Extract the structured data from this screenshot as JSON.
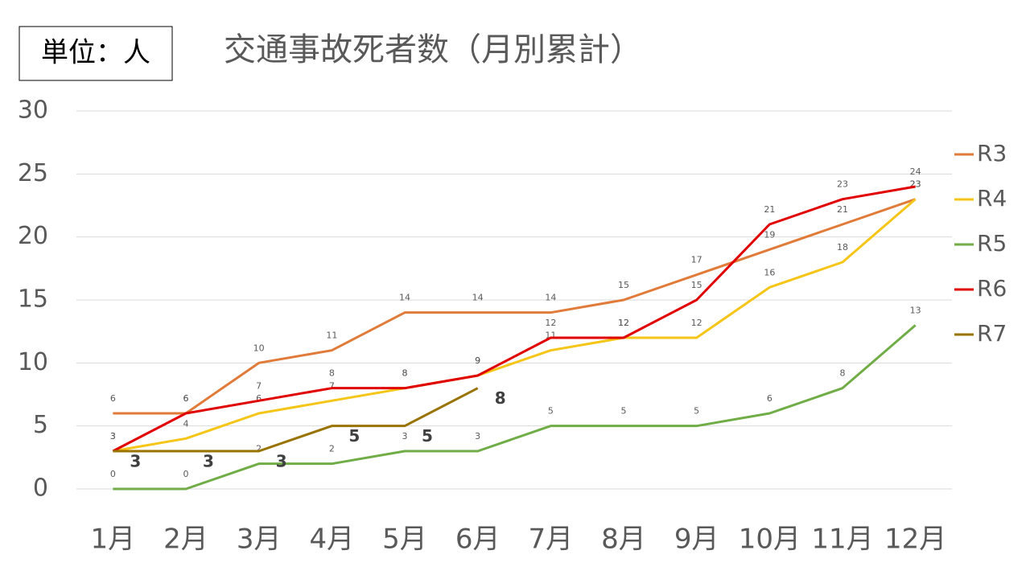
{
  "chart_data": {
    "type": "line",
    "title": "交通事故死者数（月別累計）",
    "unit_note": "単位：人",
    "categories": [
      "1月",
      "2月",
      "3月",
      "4月",
      "5月",
      "6月",
      "7月",
      "8月",
      "9月",
      "10月",
      "11月",
      "12月"
    ],
    "series": [
      {
        "name": "R3",
        "color": "#E07B39",
        "values": [
          6,
          6,
          10,
          11,
          14,
          14,
          14,
          15,
          17,
          19,
          21,
          23
        ]
      },
      {
        "name": "R4",
        "color": "#F5C518",
        "values": [
          3,
          4,
          6,
          7,
          8,
          9,
          11,
          12,
          12,
          16,
          18,
          23
        ]
      },
      {
        "name": "R5",
        "color": "#70AD47",
        "values": [
          0,
          0,
          2,
          2,
          3,
          3,
          5,
          5,
          5,
          6,
          8,
          13
        ]
      },
      {
        "name": "R6",
        "color": "#E00000",
        "values": [
          3,
          6,
          7,
          8,
          8,
          9,
          12,
          12,
          15,
          21,
          23,
          24
        ]
      },
      {
        "name": "R7",
        "color": "#997300",
        "values": [
          3,
          3,
          3,
          5,
          5,
          8,
          null,
          null,
          null,
          null,
          null,
          null
        ]
      }
    ],
    "ylim": [
      0,
      30
    ],
    "yticks": [
      0,
      5,
      10,
      15,
      20,
      25,
      30
    ],
    "grid": true,
    "legend": "right"
  }
}
